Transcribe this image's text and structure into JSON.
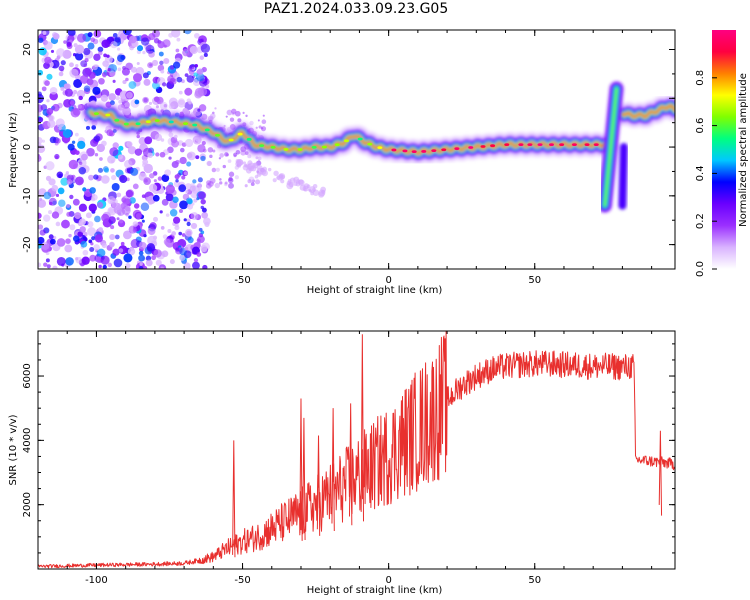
{
  "title": "PAZ1.2024.033.09.23.G05",
  "chart_data": [
    {
      "type": "heatmap",
      "xlabel": "Height of straight line (km)",
      "ylabel": "Frequency (Hz)",
      "xlim": [
        -120,
        98
      ],
      "ylim": [
        -25,
        24
      ],
      "xticks": [
        -100,
        -50,
        0,
        50
      ],
      "yticks": [
        -20,
        -10,
        0,
        10,
        20
      ],
      "colorbar": {
        "label": "Normalized spectral amplitude",
        "range": [
          0,
          1
        ],
        "ticks": [
          0.0,
          0.2,
          0.4,
          0.6,
          0.8
        ],
        "colors": [
          "#ffffff",
          "#d9b3ff",
          "#9b30ff",
          "#6a00ff",
          "#0000ff",
          "#00c8ff",
          "#00ff80",
          "#80ff00",
          "#ffff00",
          "#ff8000",
          "#ff0040",
          "#ff0080"
        ]
      },
      "ridge": {
        "x": [
          -102,
          -95,
          -92,
          -88,
          -80,
          -72,
          -66,
          -60,
          -55,
          -50,
          -46,
          -40,
          -35,
          -30,
          -25,
          -20,
          -15,
          -12,
          -8,
          -4,
          0,
          10,
          20,
          30,
          40,
          50,
          60,
          68,
          72,
          74
        ],
        "y": [
          7,
          6.5,
          5,
          4.5,
          5.5,
          5,
          4.5,
          3,
          1,
          3,
          0.5,
          0,
          -0.5,
          -0.5,
          0,
          0,
          1,
          2.5,
          1,
          0,
          -0.5,
          -1,
          -0.5,
          0,
          0.5,
          0.5,
          0.5,
          0.5,
          0.5,
          0.5
        ]
      },
      "ridge_right": {
        "x": [
          80,
          83,
          86,
          88,
          90,
          92,
          94,
          96,
          98
        ],
        "y": [
          7,
          6.5,
          6.5,
          6.5,
          7,
          7.5,
          8,
          8.5,
          7.5
        ]
      },
      "vertical_streak": {
        "x": [
          74,
          76,
          78
        ],
        "y": [
          -12,
          12
        ]
      }
    },
    {
      "type": "line",
      "xlabel": "Height of straight line (km)",
      "ylabel": "SNR (10 * v/v)",
      "xlim": [
        -120,
        98
      ],
      "ylim": [
        0,
        7400
      ],
      "xticks": [
        -100,
        -50,
        0,
        50
      ],
      "yticks": [
        2000,
        4000,
        6000
      ],
      "color": "#e8302e",
      "profile": {
        "x": [
          -120,
          -100,
          -80,
          -70,
          -65,
          -60,
          -55,
          -50,
          -45,
          -40,
          -35,
          -30,
          -25,
          -20,
          -15,
          -10,
          -5,
          0,
          5,
          10,
          15,
          20,
          25,
          30,
          35,
          40,
          45,
          50,
          55,
          60,
          65,
          70,
          75,
          80,
          84,
          84.5,
          90,
          95,
          98
        ],
        "y": [
          80,
          120,
          150,
          180,
          260,
          380,
          650,
          850,
          1000,
          1250,
          1500,
          1750,
          2000,
          2300,
          2600,
          2900,
          3200,
          3550,
          3950,
          4350,
          4750,
          5250,
          5700,
          6000,
          6200,
          6300,
          6350,
          6380,
          6380,
          6350,
          6330,
          6300,
          6300,
          6280,
          6300,
          3400,
          3350,
          3300,
          3250
        ]
      },
      "spikes": [
        {
          "x": -53,
          "y": 4000
        },
        {
          "x": -30,
          "y": 5300
        },
        {
          "x": -29,
          "y": 4700
        },
        {
          "x": -24,
          "y": 4150
        },
        {
          "x": -19,
          "y": 5000
        },
        {
          "x": -13,
          "y": 5150
        },
        {
          "x": -9,
          "y": 7300
        },
        {
          "x": 93,
          "y": 4300
        }
      ]
    }
  ]
}
